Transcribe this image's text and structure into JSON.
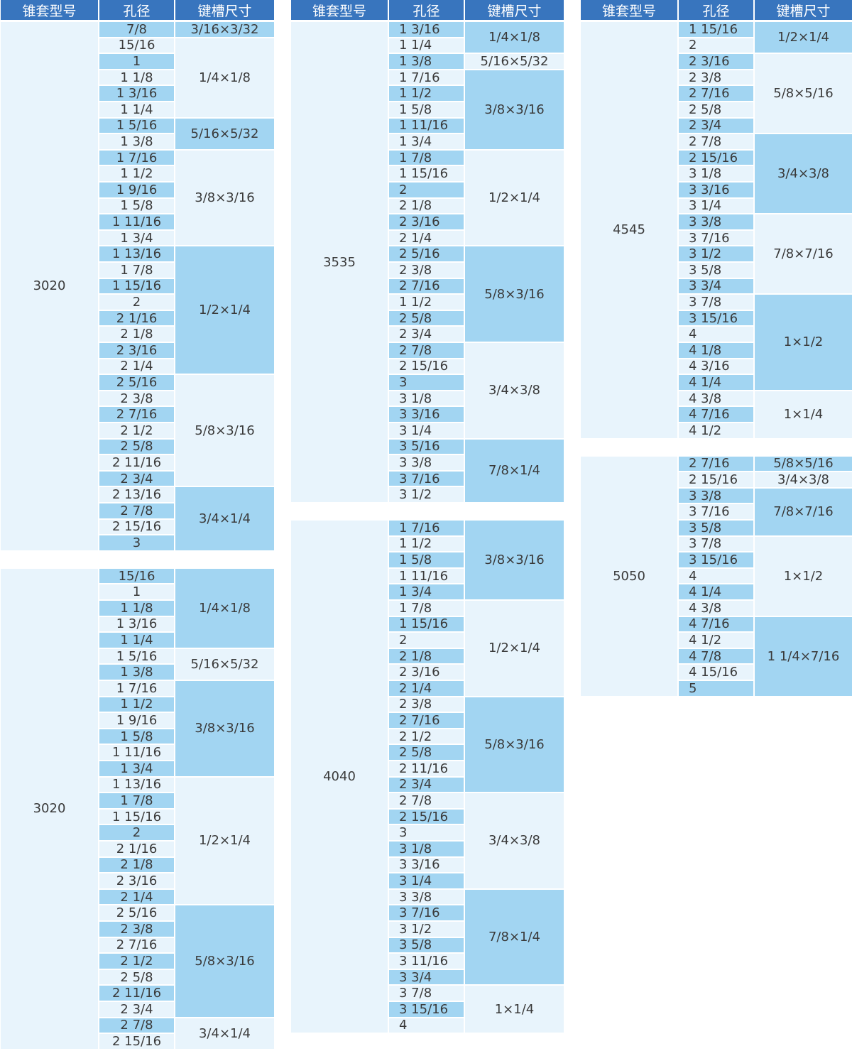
{
  "tables": [
    {
      "header": [
        "锥套型号",
        "孔径",
        "键槽尺寸"
      ],
      "blocks": [
        {
          "model": "3020",
          "bores": [
            "7/8",
            "15/16",
            "1",
            "1 1/8",
            "1 3/16",
            "1 1/4",
            "1 5/16",
            "1 3/8",
            "1 7/16",
            "1 1/2",
            "1 9/16",
            "1 5/8",
            "1 11/16",
            "1 3/4",
            "1 13/16",
            "1 7/8",
            "1 15/16",
            "2",
            "2 1/16",
            "2 1/8",
            "2 3/16",
            "2 1/4",
            "2 5/16",
            "2 3/8",
            "2 7/16",
            "2 1/2",
            "2 5/8",
            "2 11/16",
            "2 3/4",
            "2 13/16",
            "2 7/8",
            "2 15/16",
            "3"
          ],
          "keyways": [
            "3/16×3/32",
            "1/4×1/8",
            null,
            null,
            null,
            null,
            "5/16×5/32",
            null,
            "3/8×3/16",
            null,
            null,
            null,
            null,
            null,
            "1/2×1/4",
            null,
            null,
            null,
            null,
            null,
            null,
            null,
            "5/8×3/16",
            null,
            null,
            null,
            null,
            null,
            null,
            "3/4×1/4",
            null,
            null,
            null
          ]
        },
        {
          "model": "3020",
          "bores": [
            "15/16",
            "1",
            "1 1/8",
            "1 3/16",
            "1 1/4",
            "1 5/16",
            "1 3/8",
            "1 7/16",
            "1 1/2",
            "1 9/16",
            "1 5/8",
            "1 11/16",
            "1 3/4",
            "1 13/16",
            "1 7/8",
            "1 15/16",
            "2",
            "2 1/16",
            "2 1/8",
            "2 3/16",
            "2 1/4",
            "2 5/16",
            "2 3/8",
            "2 7/16",
            "2 1/2",
            "2 5/8",
            "2 11/16",
            "2 3/4",
            "2 7/8",
            "2 15/16"
          ],
          "keyways": [
            "1/4×1/8",
            null,
            null,
            null,
            null,
            "5/16×5/32",
            null,
            "3/8×3/16",
            null,
            null,
            null,
            null,
            null,
            "1/2×1/4",
            null,
            null,
            null,
            null,
            null,
            null,
            null,
            "5/8×3/16",
            null,
            null,
            null,
            null,
            null,
            null,
            "3/4×1/4",
            null
          ]
        }
      ]
    },
    {
      "header": [
        "锥套型号",
        "孔径",
        "键槽尺寸"
      ],
      "blocks": [
        {
          "model": "3535",
          "bores": [
            "1 3/16",
            "1 1/4",
            "1 3/8",
            "1 7/16",
            "1 1/2",
            "1 5/8",
            "1 11/16",
            "1 3/4",
            "1 7/8",
            "1 15/16",
            "2",
            "2 1/8",
            "2 3/16",
            "2 1/4",
            "2 5/16",
            "2 3/8",
            "2 7/16",
            "1 1/2",
            "2 5/8",
            "2 3/4",
            "2 7/8",
            "2 15/16",
            "3",
            "3 1/8",
            "3 3/16",
            "3 1/4",
            "3 5/16",
            "3 3/8",
            "3 7/16",
            "3 1/2"
          ],
          "keyways": [
            "1/4×1/8",
            null,
            "5/16×5/32",
            "3/8×3/16",
            null,
            null,
            null,
            null,
            "1/2×1/4",
            null,
            null,
            null,
            null,
            null,
            "5/8×3/16",
            null,
            null,
            null,
            null,
            null,
            "3/4×3/8",
            null,
            null,
            null,
            null,
            null,
            "7/8×1/4",
            null,
            null,
            null
          ]
        },
        {
          "model": "4040",
          "bores": [
            "1 7/16",
            "1 1/2",
            "1 5/8",
            "1 11/16",
            "1 3/4",
            "1 7/8",
            "1 15/16",
            "2",
            "2 1/8",
            "2 3/16",
            "2 1/4",
            "2 3/8",
            "2 7/16",
            "2 1/2",
            "2 5/8",
            "2 11/16",
            "2 3/4",
            "2 7/8",
            "2 15/16",
            "3",
            "3 1/8",
            "3 3/16",
            "3 1/4",
            "3 3/8",
            "3 7/16",
            "3 1/2",
            "3 5/8",
            "3 11/16",
            "3 3/4",
            "3 7/8",
            "3 15/16",
            "4"
          ],
          "keyways": [
            "3/8×3/16",
            null,
            null,
            null,
            null,
            "1/2×1/4",
            null,
            null,
            null,
            null,
            null,
            "5/8×3/16",
            null,
            null,
            null,
            null,
            null,
            "3/4×3/8",
            null,
            null,
            null,
            null,
            null,
            "7/8×1/4",
            null,
            null,
            null,
            null,
            null,
            "1×1/4",
            null,
            null
          ]
        }
      ]
    },
    {
      "header": [
        "锥套型号",
        "孔径",
        "键槽尺寸"
      ],
      "blocks": [
        {
          "model": "4545",
          "bores": [
            "1 15/16",
            "2",
            "2 3/16",
            "2 3/8",
            "2 7/16",
            "2 5/8",
            "2 3/4",
            "2 7/8",
            "2 15/16",
            "3 1/8",
            "3 3/16",
            "3 1/4",
            "3 3/8",
            "3 7/16",
            "3 1/2",
            "3 5/8",
            "3 3/4",
            "3 7/8",
            "3 15/16",
            "4",
            "4 1/8",
            "4 3/16",
            "4 1/4",
            "4 3/8",
            "4 7/16",
            "4 1/2"
          ],
          "keyways": [
            "1/2×1/4",
            null,
            "5/8×5/16",
            null,
            null,
            null,
            null,
            "3/4×3/8",
            null,
            null,
            null,
            null,
            "7/8×7/16",
            null,
            null,
            null,
            null,
            "1×1/2",
            null,
            null,
            null,
            null,
            null,
            "1×1/4",
            null,
            null
          ]
        },
        {
          "model": "5050",
          "bores": [
            "2 7/16",
            "2 15/16",
            "3 3/8",
            "3 7/16",
            "3 5/8",
            "3 7/8",
            "3 15/16",
            "4",
            "4 1/4",
            "4 3/8",
            "4 7/16",
            "4 1/2",
            "4 7/8",
            "4 15/16",
            "5"
          ],
          "keyways": [
            "5/8×5/16",
            "3/4×3/8",
            "7/8×7/16",
            null,
            null,
            "1×1/2",
            null,
            null,
            null,
            null,
            "1 1/4×7/16",
            null,
            null,
            null,
            null
          ]
        }
      ]
    }
  ]
}
